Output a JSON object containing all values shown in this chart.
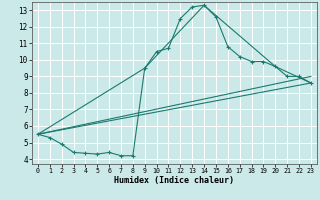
{
  "xlabel": "Humidex (Indice chaleur)",
  "xlim": [
    -0.5,
    23.5
  ],
  "ylim": [
    3.7,
    13.5
  ],
  "xticks": [
    0,
    1,
    2,
    3,
    4,
    5,
    6,
    7,
    8,
    9,
    10,
    11,
    12,
    13,
    14,
    15,
    16,
    17,
    18,
    19,
    20,
    21,
    22,
    23
  ],
  "yticks": [
    4,
    5,
    6,
    7,
    8,
    9,
    10,
    11,
    12,
    13
  ],
  "bg_color": "#cce9e9",
  "line_color": "#1a7a6e",
  "grid_color": "#ffffff",
  "line1_x": [
    0,
    1,
    2,
    3,
    4,
    5,
    6,
    7,
    8,
    9,
    10,
    11,
    12,
    13,
    14,
    15,
    16,
    17,
    18,
    19,
    20,
    21,
    22,
    23
  ],
  "line1_y": [
    5.5,
    5.3,
    4.9,
    4.4,
    4.35,
    4.3,
    4.4,
    4.2,
    4.2,
    9.5,
    10.5,
    10.7,
    12.5,
    13.2,
    13.3,
    12.6,
    10.8,
    10.2,
    9.9,
    9.9,
    9.6,
    9.0,
    9.0,
    8.6
  ],
  "line2_x": [
    0,
    23
  ],
  "line2_y": [
    5.5,
    8.6
  ],
  "line3_x": [
    0,
    23
  ],
  "line3_y": [
    5.5,
    9.0
  ],
  "line4_x": [
    0,
    9,
    14,
    20,
    23
  ],
  "line4_y": [
    5.5,
    9.5,
    13.3,
    9.6,
    8.6
  ]
}
